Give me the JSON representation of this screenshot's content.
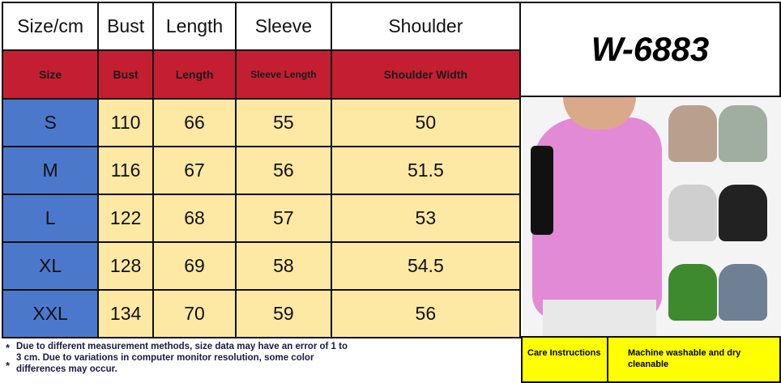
{
  "header": {
    "columns": [
      "Size/cm",
      "Bust",
      "Length",
      "Sleeve",
      "Shoulder"
    ],
    "subcolumns": [
      "Size",
      "Bust",
      "Length",
      "Sleeve Length",
      "Shoulder Width"
    ]
  },
  "rows": [
    [
      "S",
      "110",
      "66",
      "55",
      "50"
    ],
    [
      "M",
      "116",
      "67",
      "56",
      "51.5"
    ],
    [
      "L",
      "122",
      "68",
      "57",
      "53"
    ],
    [
      "XL",
      "128",
      "69",
      "58",
      "54.5"
    ],
    [
      "XXL",
      "134",
      "70",
      "59",
      "56"
    ]
  ],
  "product_code": "W-6883",
  "note_marker": "*",
  "note": "Due to different measurement methods, size data may have an error of 1 to 3 cm. Due to variations in computer monitor resolution, some color differences may occur.",
  "care": {
    "label": "Care Instructions",
    "value": "Machine washable and dry cleanable"
  },
  "colors": {
    "header_red": "#c41e32",
    "size_blue": "#4c78cc",
    "cell_yellow": "#fde8a4",
    "care_yellow": "#ffff00"
  },
  "swatches": [
    "#e28ad6",
    "#b9a08e",
    "#9fae9e",
    "#cfcfcf",
    "#222222",
    "#3d8a2f",
    "#6f7f94"
  ]
}
